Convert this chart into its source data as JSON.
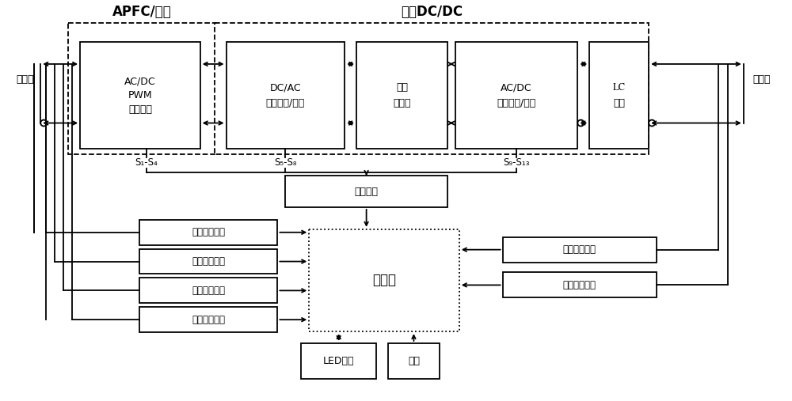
{
  "figsize": [
    10.0,
    5.07
  ],
  "dpi": 100,
  "bg_color": "#ffffff",
  "title_apfc": "APFC/逆变",
  "title_dcdc": "双向DC/DC",
  "label_ac_side": "交流侧",
  "label_dc_side": "直流侧",
  "box1_lines": [
    "AC/DC",
    "PWM",
    "可逆整流"
  ],
  "box2_lines": [
    "DC/AC",
    "高频整流/逆变"
  ],
  "box3_lines": [
    "高频",
    "变压器"
  ],
  "box4_lines": [
    "AC/DC",
    "高频整流/逆变"
  ],
  "box5_lines": [
    "LC",
    "滤波"
  ],
  "box_drive": "驱动隔离",
  "box_ctrl": "控制器",
  "box_led": "LED显示",
  "box_btn": "按镰",
  "box_s1": "原边电流采样",
  "box_s2": "直流电压采样",
  "box_s3": "交流电压采样",
  "box_s4": "交流电流采样",
  "box_s5": "输出电流采样",
  "box_s6": "输出电压采样",
  "label_s14": "S₁-S₄",
  "label_s58": "S₅-S₈",
  "label_s913": "S₉-S₁₃"
}
